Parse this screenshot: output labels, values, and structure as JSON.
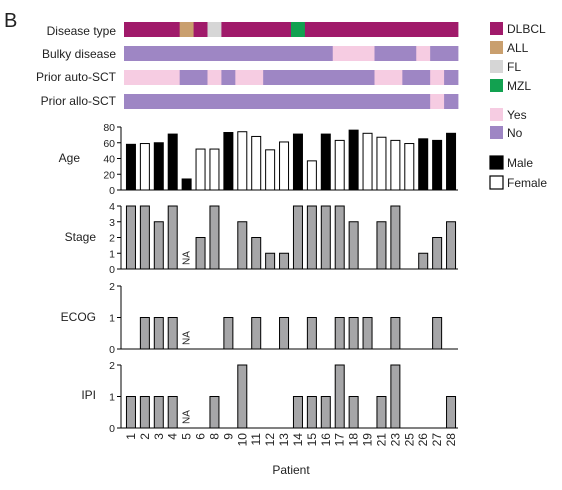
{
  "panel_label": "B",
  "colors": {
    "dlbcl": "#a01a6a",
    "all": "#c99f6e",
    "fl": "#d6d6d6",
    "mzl": "#12a150",
    "yes": "#f6cce2",
    "no": "#9e86c4",
    "male": "#000000",
    "female": "#ffffff",
    "bar_gray": "#a6a6a8"
  },
  "legend": {
    "disease": [
      {
        "key": "dlbcl",
        "label": "DLBCL"
      },
      {
        "key": "all",
        "label": "ALL"
      },
      {
        "key": "fl",
        "label": "FL"
      },
      {
        "key": "mzl",
        "label": "MZL"
      }
    ],
    "yesno": [
      {
        "key": "yes",
        "label": "Yes"
      },
      {
        "key": "no",
        "label": "No"
      }
    ],
    "sex": [
      {
        "key": "male",
        "label": "Male"
      },
      {
        "key": "female",
        "label": "Female"
      }
    ]
  },
  "chart_data": {
    "type": "bar",
    "patients": [
      "1",
      "2",
      "3",
      "4",
      "5",
      "6",
      "8",
      "9",
      "10",
      "11",
      "12",
      "13",
      "14",
      "15",
      "16",
      "17",
      "18",
      "19",
      "21",
      "23",
      "25",
      "26",
      "27",
      "28"
    ],
    "xlabel": "Patient",
    "track_labels": {
      "disease": "Disease type",
      "bulky": "Bulky disease",
      "auto": "Prior auto-SCT",
      "allo": "Prior allo-SCT"
    },
    "tracks": {
      "disease": [
        "dlbcl",
        "dlbcl",
        "dlbcl",
        "dlbcl",
        "all",
        "dlbcl",
        "fl",
        "dlbcl",
        "dlbcl",
        "dlbcl",
        "dlbcl",
        "dlbcl",
        "mzl",
        "dlbcl",
        "dlbcl",
        "dlbcl",
        "dlbcl",
        "dlbcl",
        "dlbcl",
        "dlbcl",
        "dlbcl",
        "dlbcl",
        "dlbcl",
        "dlbcl"
      ],
      "bulky": [
        "no",
        "no",
        "no",
        "no",
        "no",
        "no",
        "no",
        "no",
        "no",
        "no",
        "no",
        "no",
        "no",
        "no",
        "no",
        "yes",
        "yes",
        "yes",
        "no",
        "no",
        "no",
        "yes",
        "no",
        "no"
      ],
      "auto": [
        "yes",
        "yes",
        "yes",
        "yes",
        "no",
        "no",
        "yes",
        "no",
        "yes",
        "yes",
        "no",
        "no",
        "no",
        "no",
        "no",
        "no",
        "no",
        "no",
        "yes",
        "yes",
        "no",
        "no",
        "yes",
        "no"
      ],
      "allo": [
        "no",
        "no",
        "no",
        "no",
        "no",
        "no",
        "no",
        "no",
        "no",
        "no",
        "no",
        "no",
        "no",
        "no",
        "no",
        "no",
        "no",
        "no",
        "no",
        "no",
        "no",
        "no",
        "yes",
        "no"
      ]
    },
    "age": {
      "ylabel": "Age",
      "ylim": [
        0,
        80
      ],
      "yticks": [
        0,
        20,
        40,
        60,
        80
      ],
      "values": [
        58,
        59,
        60,
        71,
        14,
        52,
        52,
        73,
        74,
        68,
        51,
        61,
        71,
        37,
        71,
        63,
        76,
        72,
        67,
        63,
        59,
        65,
        63,
        72
      ],
      "sex": [
        "male",
        "female",
        "male",
        "male",
        "male",
        "female",
        "female",
        "male",
        "female",
        "female",
        "female",
        "female",
        "male",
        "female",
        "male",
        "female",
        "male",
        "female",
        "female",
        "female",
        "female",
        "male",
        "male",
        "male"
      ]
    },
    "stage": {
      "ylabel": "Stage",
      "ylim": [
        0,
        4
      ],
      "yticks": [
        0,
        1,
        2,
        3,
        4
      ],
      "values": [
        4,
        4,
        3,
        4,
        null,
        2,
        4,
        0,
        3,
        2,
        1,
        1,
        4,
        4,
        4,
        4,
        3,
        0,
        3,
        4,
        0,
        1,
        2,
        3
      ]
    },
    "ecog": {
      "ylabel": "ECOG",
      "ylim": [
        0,
        2
      ],
      "yticks": [
        0,
        1,
        2
      ],
      "values": [
        0,
        1,
        1,
        1,
        null,
        0,
        0,
        1,
        0,
        1,
        0,
        1,
        0,
        1,
        0,
        1,
        1,
        1,
        0,
        1,
        0,
        0,
        1,
        0
      ]
    },
    "ipi": {
      "ylabel": "IPI",
      "ylim": [
        0,
        2
      ],
      "yticks": [
        0,
        1,
        2
      ],
      "values": [
        1,
        1,
        1,
        1,
        null,
        0,
        1,
        0,
        2,
        0,
        0,
        0,
        1,
        1,
        1,
        2,
        1,
        0,
        1,
        2,
        0,
        0,
        0,
        1
      ]
    },
    "na_label": "NA"
  }
}
